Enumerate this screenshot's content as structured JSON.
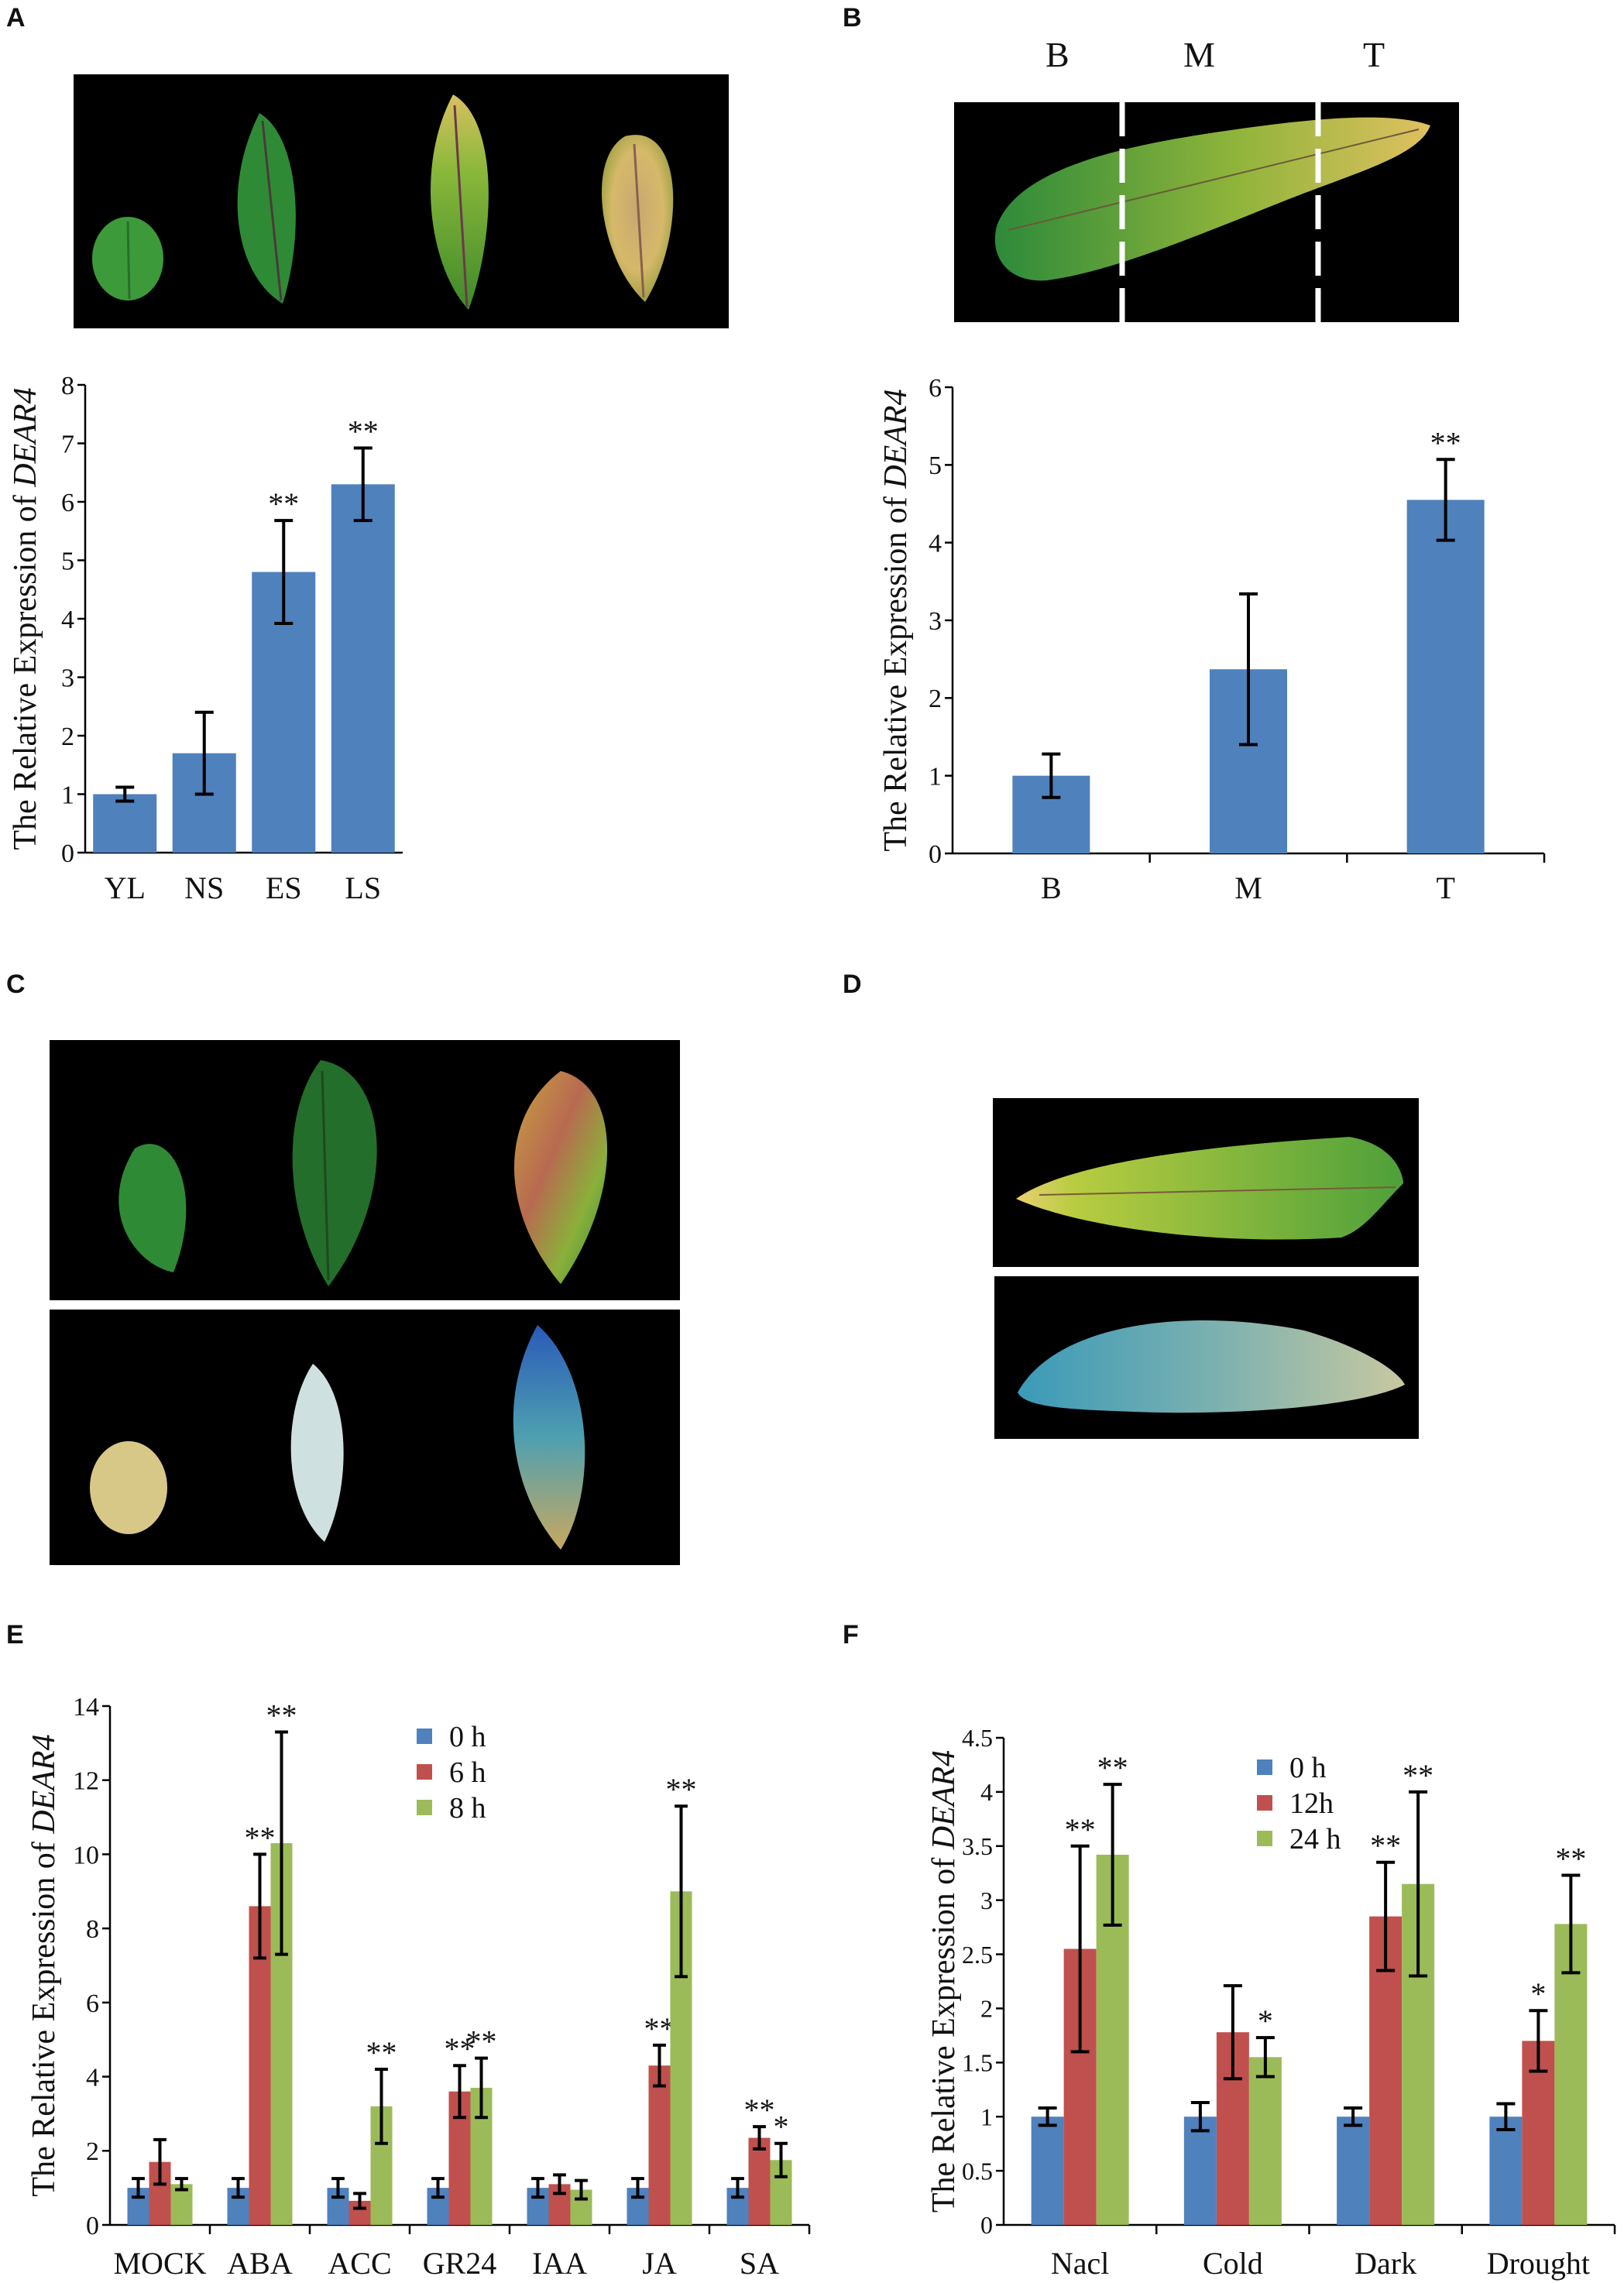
{
  "panels": {
    "A": "A",
    "B": "B",
    "C": "C",
    "D": "D",
    "E": "E",
    "F": "F"
  },
  "photo_b_segments": [
    "B",
    "M",
    "T"
  ],
  "colors": {
    "blue": "#4f81bd",
    "red": "#c0504d",
    "green": "#9bbb59",
    "error": "#000000",
    "photo_bg": "#000000"
  },
  "chart_data": [
    {
      "id": "A",
      "type": "bar",
      "ylabel_prefix": "The Relative Expression of ",
      "ylabel_gene": "DEAR4",
      "categories": [
        "YL",
        "NS",
        "ES",
        "LS"
      ],
      "series": [
        {
          "name": "",
          "values": [
            1.0,
            1.7,
            4.8,
            6.3
          ],
          "errors": [
            0.12,
            0.7,
            0.88,
            0.62
          ],
          "color": "#4f81bd"
        }
      ],
      "sig": [
        [
          "",
          "",
          "**",
          "**"
        ]
      ],
      "ylim": [
        0,
        8
      ],
      "yticks": [
        "0",
        "1",
        "2",
        "3",
        "4",
        "5",
        "6",
        "7",
        "8"
      ]
    },
    {
      "id": "B",
      "type": "bar",
      "ylabel_prefix": "The Relative Expression of ",
      "ylabel_gene": "DEAR4",
      "categories": [
        "B",
        "M",
        "T"
      ],
      "series": [
        {
          "name": "",
          "values": [
            1.0,
            2.37,
            4.55
          ],
          "errors": [
            0.28,
            0.97,
            0.52
          ],
          "color": "#4f81bd"
        }
      ],
      "sig": [
        [
          "",
          "",
          "**"
        ]
      ],
      "ylim": [
        0,
        6
      ],
      "yticks": [
        "0",
        "1",
        "2",
        "3",
        "4",
        "5",
        "6"
      ]
    },
    {
      "id": "E",
      "type": "bar",
      "ylabel_prefix": "The Relative Expression of ",
      "ylabel_gene": "DEAR4",
      "categories": [
        "MOCK",
        "ABA",
        "ACC",
        "GR24",
        "IAA",
        "JA",
        "SA"
      ],
      "series": [
        {
          "name": "0 h",
          "values": [
            1.0,
            1.0,
            1.0,
            1.0,
            1.0,
            1.0,
            1.0
          ],
          "errors": [
            0.25,
            0.25,
            0.25,
            0.25,
            0.25,
            0.25,
            0.25
          ],
          "color": "#4f81bd"
        },
        {
          "name": "6 h",
          "values": [
            1.7,
            8.6,
            0.65,
            3.6,
            1.1,
            4.3,
            2.35
          ],
          "errors": [
            0.6,
            1.4,
            0.2,
            0.7,
            0.25,
            0.55,
            0.3
          ],
          "color": "#c0504d"
        },
        {
          "name": "8 h",
          "values": [
            1.1,
            10.3,
            3.2,
            3.7,
            0.95,
            9.0,
            1.75
          ],
          "errors": [
            0.15,
            3.0,
            1.0,
            0.8,
            0.25,
            2.3,
            0.45
          ],
          "color": "#9bbb59"
        }
      ],
      "sig": [
        [
          "",
          "",
          "",
          "",
          "",
          "",
          ""
        ],
        [
          "",
          "**",
          "",
          "**",
          "",
          "**",
          "**"
        ],
        [
          "",
          "**",
          "**",
          "**",
          "",
          "**",
          "*"
        ]
      ],
      "ylim": [
        0,
        14
      ],
      "yticks": [
        "0",
        "2",
        "4",
        "6",
        "8",
        "10",
        "12",
        "14"
      ]
    },
    {
      "id": "F",
      "type": "bar",
      "ylabel_prefix": "The Relative Expression of ",
      "ylabel_gene": "DEAR4",
      "categories": [
        "Nacl",
        "Cold",
        "Dark",
        "Drought"
      ],
      "series": [
        {
          "name": "0 h",
          "values": [
            1.0,
            1.0,
            1.0,
            1.0
          ],
          "errors": [
            0.08,
            0.13,
            0.08,
            0.12
          ],
          "color": "#4f81bd"
        },
        {
          "name": "12h",
          "values": [
            2.55,
            1.78,
            2.85,
            1.7
          ],
          "errors": [
            0.95,
            0.43,
            0.5,
            0.28
          ],
          "color": "#c0504d"
        },
        {
          "name": "24 h",
          "values": [
            3.42,
            1.55,
            3.15,
            2.78
          ],
          "errors": [
            0.65,
            0.18,
            0.85,
            0.45
          ],
          "color": "#9bbb59"
        }
      ],
      "sig": [
        [
          "",
          "",
          "",
          ""
        ],
        [
          "**",
          "",
          "**",
          "*"
        ],
        [
          "**",
          "*",
          "**",
          "**"
        ]
      ],
      "ylim": [
        0,
        4.5
      ],
      "yticks": [
        "0",
        "0.5",
        "1",
        "1.5",
        "2",
        "2.5",
        "3",
        "3.5",
        "4",
        "4.5"
      ]
    }
  ]
}
